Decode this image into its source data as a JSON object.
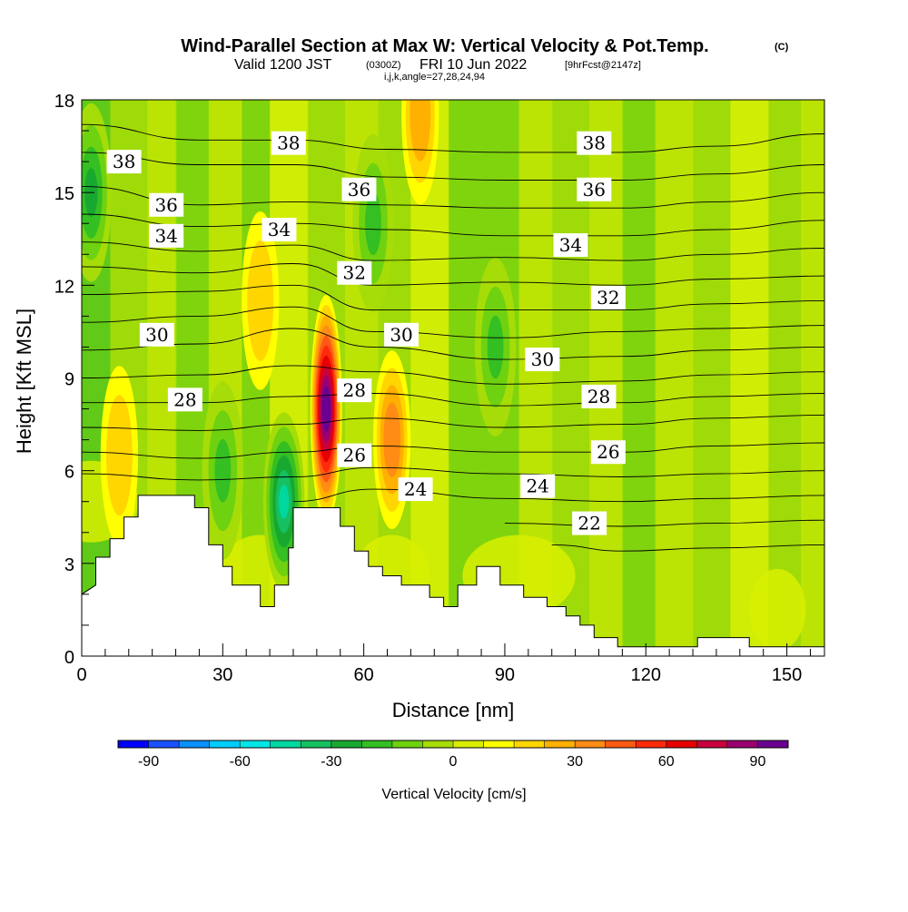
{
  "title": {
    "main": "Wind-Parallel Section at Max W: Vertical Velocity & Pot.Temp.",
    "copyright_mark": "(C)",
    "valid_prefix": "Valid 1200 JST",
    "valid_utc": "(0300Z)",
    "valid_date": "FRI 10 Jun 2022",
    "forecast": "[9hrFcst@2147z]",
    "indices": "i,j,k,angle=27,28,24,94"
  },
  "colors": {
    "colorbar": [
      "#0000ff",
      "#1a50ff",
      "#0a90ff",
      "#00ccff",
      "#00e6e6",
      "#00d8a0",
      "#16c060",
      "#18a830",
      "#34bf22",
      "#6ed210",
      "#a6dc08",
      "#d8ee00",
      "#ffff00",
      "#ffd600",
      "#ffb000",
      "#ff8c14",
      "#ff5a14",
      "#ff2a0a",
      "#e60000",
      "#c8003c",
      "#9a0070",
      "#6a0090"
    ],
    "ground": "#ffffff",
    "contour": "#000000"
  },
  "chart_data": {
    "type": "heatmap",
    "x_axis": {
      "label": "Distance [nm]",
      "range": [
        0,
        158
      ],
      "major_ticks": [
        0,
        30,
        60,
        90,
        120,
        150
      ],
      "minor_step": 5
    },
    "y_axis": {
      "label": "Height [Kft MSL]",
      "range": [
        0,
        18
      ],
      "major_ticks": [
        0,
        3,
        6,
        9,
        12,
        15,
        18
      ],
      "minor_step": 1
    },
    "colorbar": {
      "label": "Vertical Velocity [cm/s]",
      "tick_values": [
        -90,
        -60,
        -30,
        0,
        30,
        60,
        90
      ],
      "tick_labels": [
        "-90",
        "-60",
        "-30",
        "0",
        "30",
        "60",
        "90"
      ],
      "edges": [
        -100,
        -90,
        -80,
        -70,
        -60,
        -50,
        -40,
        -30,
        -20,
        -10,
        -5,
        0,
        5,
        10,
        20,
        30,
        40,
        50,
        60,
        70,
        80,
        90,
        100
      ]
    },
    "vertical_velocity_features": [
      {
        "kind": "updraft",
        "x": 52,
        "y": 8.0,
        "peak": 95
      },
      {
        "kind": "updraft",
        "x": 66,
        "y": 7.0,
        "peak": 32
      },
      {
        "kind": "updraft",
        "x": 72,
        "y": 17.5,
        "peak": 28
      },
      {
        "kind": "updraft",
        "x": 38,
        "y": 11.5,
        "peak": 18
      },
      {
        "kind": "updraft",
        "x": 8,
        "y": 6.5,
        "peak": 15
      },
      {
        "kind": "downdraft",
        "x": 43,
        "y": 5.0,
        "peak": -45
      },
      {
        "kind": "downdraft",
        "x": 2,
        "y": 15.0,
        "peak": -28
      },
      {
        "kind": "downdraft",
        "x": 62,
        "y": 14.0,
        "peak": -15
      },
      {
        "kind": "downdraft",
        "x": 88,
        "y": 10.0,
        "peak": -15
      },
      {
        "kind": "downdraft",
        "x": 30,
        "y": 6.0,
        "peak": -20
      }
    ],
    "terrain": [
      [
        0,
        2.0
      ],
      [
        3,
        2.3
      ],
      [
        3,
        3.2
      ],
      [
        6,
        3.2
      ],
      [
        6,
        3.8
      ],
      [
        9,
        3.8
      ],
      [
        9,
        4.5
      ],
      [
        12,
        4.5
      ],
      [
        12,
        5.2
      ],
      [
        24,
        5.2
      ],
      [
        24,
        4.8
      ],
      [
        27,
        4.8
      ],
      [
        27,
        3.6
      ],
      [
        30,
        3.6
      ],
      [
        30,
        2.9
      ],
      [
        32,
        2.9
      ],
      [
        32,
        2.3
      ],
      [
        38,
        2.3
      ],
      [
        38,
        1.6
      ],
      [
        41,
        1.6
      ],
      [
        41,
        2.3
      ],
      [
        44,
        2.3
      ],
      [
        44,
        3.5
      ],
      [
        45,
        3.5
      ],
      [
        45,
        4.8
      ],
      [
        55,
        4.8
      ],
      [
        55,
        4.2
      ],
      [
        58,
        4.2
      ],
      [
        58,
        3.4
      ],
      [
        61,
        3.4
      ],
      [
        61,
        2.9
      ],
      [
        64,
        2.9
      ],
      [
        64,
        2.6
      ],
      [
        68,
        2.6
      ],
      [
        68,
        2.3
      ],
      [
        74,
        2.3
      ],
      [
        74,
        1.9
      ],
      [
        77,
        1.9
      ],
      [
        77,
        1.6
      ],
      [
        80,
        1.6
      ],
      [
        80,
        2.3
      ],
      [
        84,
        2.3
      ],
      [
        84,
        2.9
      ],
      [
        89,
        2.9
      ],
      [
        89,
        2.3
      ],
      [
        94,
        2.3
      ],
      [
        94,
        1.9
      ],
      [
        99,
        1.9
      ],
      [
        99,
        1.6
      ],
      [
        103,
        1.6
      ],
      [
        103,
        1.3
      ],
      [
        106,
        1.3
      ],
      [
        106,
        1.0
      ],
      [
        109,
        1.0
      ],
      [
        109,
        0.6
      ],
      [
        114,
        0.6
      ],
      [
        114,
        0.3
      ],
      [
        131,
        0.3
      ],
      [
        131,
        0.6
      ],
      [
        142,
        0.6
      ],
      [
        142,
        0.3
      ],
      [
        158,
        0.3
      ]
    ],
    "theta_contours": [
      {
        "value": 38,
        "points": [
          [
            0,
            17.2
          ],
          [
            25,
            16.7
          ],
          [
            45,
            16.7
          ],
          [
            65,
            16.4
          ],
          [
            90,
            16.3
          ],
          [
            115,
            16.3
          ],
          [
            135,
            16.5
          ],
          [
            158,
            16.9
          ]
        ]
      },
      {
        "value": 37,
        "points": [
          [
            0,
            16.3
          ],
          [
            25,
            15.9
          ],
          [
            45,
            15.9
          ],
          [
            65,
            15.5
          ],
          [
            90,
            15.4
          ],
          [
            115,
            15.4
          ],
          [
            135,
            15.6
          ],
          [
            158,
            15.9
          ]
        ]
      },
      {
        "value": 36,
        "points": [
          [
            0,
            15.2
          ],
          [
            25,
            14.6
          ],
          [
            45,
            14.7
          ],
          [
            65,
            14.6
          ],
          [
            90,
            14.5
          ],
          [
            115,
            14.5
          ],
          [
            135,
            14.7
          ],
          [
            158,
            15.0
          ]
        ]
      },
      {
        "value": 35,
        "points": [
          [
            0,
            14.3
          ],
          [
            25,
            13.9
          ],
          [
            45,
            14.0
          ],
          [
            65,
            13.8
          ],
          [
            90,
            13.6
          ],
          [
            115,
            13.6
          ],
          [
            135,
            13.8
          ],
          [
            158,
            14.1
          ]
        ]
      },
      {
        "value": 34,
        "points": [
          [
            0,
            13.4
          ],
          [
            25,
            13.1
          ],
          [
            45,
            13.3
          ],
          [
            62,
            12.8
          ],
          [
            90,
            12.9
          ],
          [
            115,
            12.8
          ],
          [
            135,
            13.0
          ],
          [
            158,
            13.2
          ]
        ]
      },
      {
        "value": 33,
        "points": [
          [
            0,
            12.6
          ],
          [
            25,
            12.4
          ],
          [
            45,
            12.7
          ],
          [
            62,
            12.0
          ],
          [
            90,
            12.1
          ],
          [
            115,
            12.0
          ],
          [
            135,
            12.2
          ],
          [
            158,
            12.3
          ]
        ]
      },
      {
        "value": 32,
        "points": [
          [
            0,
            11.7
          ],
          [
            25,
            11.8
          ],
          [
            45,
            12.0
          ],
          [
            62,
            11.2
          ],
          [
            90,
            11.2
          ],
          [
            115,
            11.2
          ],
          [
            135,
            11.4
          ],
          [
            158,
            11.5
          ]
        ]
      },
      {
        "value": 31,
        "points": [
          [
            0,
            10.8
          ],
          [
            25,
            11.0
          ],
          [
            45,
            11.3
          ],
          [
            62,
            10.5
          ],
          [
            90,
            10.3
          ],
          [
            115,
            10.5
          ],
          [
            135,
            10.6
          ],
          [
            158,
            10.7
          ]
        ]
      },
      {
        "value": 30,
        "points": [
          [
            0,
            9.9
          ],
          [
            25,
            10.1
          ],
          [
            45,
            10.6
          ],
          [
            62,
            10.0
          ],
          [
            90,
            9.6
          ],
          [
            115,
            9.7
          ],
          [
            135,
            9.9
          ],
          [
            158,
            10.0
          ]
        ]
      },
      {
        "value": 29,
        "points": [
          [
            0,
            9.0
          ],
          [
            25,
            9.1
          ],
          [
            45,
            9.4
          ],
          [
            62,
            9.2
          ],
          [
            90,
            8.8
          ],
          [
            115,
            8.9
          ],
          [
            135,
            9.1
          ],
          [
            158,
            9.2
          ]
        ]
      },
      {
        "value": 28,
        "points": [
          [
            0,
            8.2
          ],
          [
            25,
            8.2
          ],
          [
            45,
            8.4
          ],
          [
            62,
            8.5
          ],
          [
            90,
            8.1
          ],
          [
            115,
            8.2
          ],
          [
            135,
            8.4
          ],
          [
            158,
            8.5
          ]
        ]
      },
      {
        "value": 27,
        "points": [
          [
            0,
            7.4
          ],
          [
            25,
            7.3
          ],
          [
            45,
            7.5
          ],
          [
            62,
            7.7
          ],
          [
            90,
            7.4
          ],
          [
            115,
            7.5
          ],
          [
            135,
            7.7
          ],
          [
            158,
            7.8
          ]
        ]
      },
      {
        "value": 26,
        "points": [
          [
            0,
            6.6
          ],
          [
            25,
            6.4
          ],
          [
            45,
            6.6
          ],
          [
            62,
            6.8
          ],
          [
            90,
            6.6
          ],
          [
            115,
            6.6
          ],
          [
            135,
            6.8
          ],
          [
            158,
            6.9
          ]
        ]
      },
      {
        "value": 25,
        "points": [
          [
            0,
            5.9
          ],
          [
            25,
            5.7
          ],
          [
            45,
            5.8
          ],
          [
            62,
            6.1
          ],
          [
            90,
            5.9
          ],
          [
            115,
            5.8
          ],
          [
            135,
            5.9
          ],
          [
            158,
            6.0
          ]
        ]
      },
      {
        "value": 24,
        "points": [
          [
            45,
            5.0
          ],
          [
            62,
            5.4
          ],
          [
            90,
            5.1
          ],
          [
            115,
            5.0
          ],
          [
            135,
            5.1
          ],
          [
            158,
            5.2
          ]
        ]
      },
      {
        "value": 23,
        "points": [
          [
            90,
            4.3
          ],
          [
            115,
            4.2
          ],
          [
            135,
            4.3
          ],
          [
            158,
            4.4
          ]
        ]
      },
      {
        "value": 22,
        "points": [
          [
            100,
            3.6
          ],
          [
            115,
            3.4
          ],
          [
            135,
            3.5
          ],
          [
            158,
            3.6
          ]
        ]
      }
    ],
    "contour_labels": [
      {
        "text": "38",
        "x": 9,
        "y": 16.0
      },
      {
        "text": "38",
        "x": 44,
        "y": 16.6
      },
      {
        "text": "38",
        "x": 109,
        "y": 16.6
      },
      {
        "text": "36",
        "x": 18,
        "y": 14.6
      },
      {
        "text": "36",
        "x": 59,
        "y": 15.1
      },
      {
        "text": "36",
        "x": 109,
        "y": 15.1
      },
      {
        "text": "34",
        "x": 18,
        "y": 13.6
      },
      {
        "text": "34",
        "x": 42,
        "y": 13.8
      },
      {
        "text": "34",
        "x": 104,
        "y": 13.3
      },
      {
        "text": "32",
        "x": 58,
        "y": 12.4
      },
      {
        "text": "32",
        "x": 112,
        "y": 11.6
      },
      {
        "text": "30",
        "x": 16,
        "y": 10.4
      },
      {
        "text": "30",
        "x": 68,
        "y": 10.4
      },
      {
        "text": "30",
        "x": 98,
        "y": 9.6
      },
      {
        "text": "28",
        "x": 22,
        "y": 8.3
      },
      {
        "text": "28",
        "x": 58,
        "y": 8.6
      },
      {
        "text": "28",
        "x": 110,
        "y": 8.4
      },
      {
        "text": "26",
        "x": 58,
        "y": 6.5
      },
      {
        "text": "26",
        "x": 112,
        "y": 6.6
      },
      {
        "text": "24",
        "x": 71,
        "y": 5.4
      },
      {
        "text": "24",
        "x": 97,
        "y": 5.5
      },
      {
        "text": "22",
        "x": 108,
        "y": 4.3
      }
    ]
  }
}
